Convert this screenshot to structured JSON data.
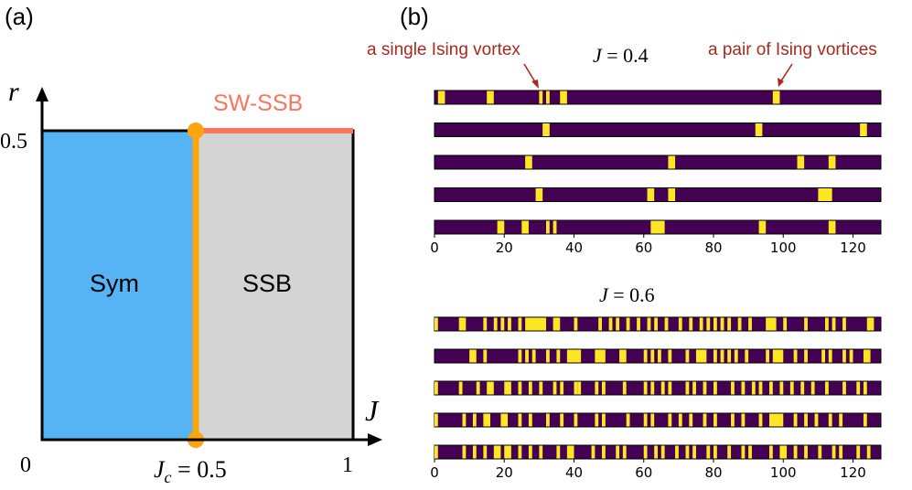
{
  "panel_a": {
    "label": "(a)",
    "axis_x_label": "J",
    "axis_y_label": "r",
    "origin_label": "0",
    "x_end_label": "1",
    "y_top_label": "0.5",
    "jc_label_main": "J",
    "jc_label_sub": "c",
    "jc_label_rest": " = 0.5",
    "region_sym": "Sym",
    "region_ssb": "SSB",
    "region_swssb": "SW-SSB",
    "colors": {
      "sym": "#56B4F5",
      "ssb": "#D4D4D4",
      "critical": "#FDA50F",
      "swssb": "#F87560"
    }
  },
  "panel_b": {
    "label": "(b)",
    "annotation_left": "a single Ising vortex",
    "annotation_right": "a pair of Ising vortices",
    "annotation_color": "#A72A1F",
    "purple": "#440154",
    "yellow": "#FDE725"
  },
  "chart_data": [
    {
      "type": "heatmap",
      "title": "J = 0.4",
      "title_var": "J",
      "title_rest": " = 0.4",
      "x_range": [
        0,
        128
      ],
      "x_ticks": [
        "0",
        "20",
        "40",
        "60",
        "80",
        "100",
        "120"
      ],
      "rows": [
        [
          [
            1,
            3
          ],
          [
            15,
            17
          ],
          [
            30,
            31
          ],
          [
            32,
            33
          ],
          [
            36,
            38
          ],
          [
            97,
            99
          ]
        ],
        [
          [
            31,
            33
          ],
          [
            92,
            94
          ],
          [
            122,
            124
          ]
        ],
        [
          [
            26,
            28
          ],
          [
            67,
            69
          ],
          [
            104,
            106
          ],
          [
            113,
            115
          ]
        ],
        [
          [
            29,
            31
          ],
          [
            61,
            63
          ],
          [
            67,
            69
          ],
          [
            110,
            114
          ]
        ],
        [
          [
            18,
            20
          ],
          [
            25,
            27
          ],
          [
            32,
            33
          ],
          [
            34,
            35
          ],
          [
            62,
            66
          ],
          [
            93,
            95
          ],
          [
            113,
            115
          ]
        ]
      ]
    },
    {
      "type": "heatmap",
      "title": "J = 0.6",
      "title_var": "J",
      "title_rest": " = 0.6",
      "x_range": [
        0,
        128
      ],
      "x_ticks": [
        "0",
        "20",
        "40",
        "60",
        "80",
        "100",
        "120"
      ],
      "rows": [
        [
          [
            0,
            1
          ],
          [
            7,
            9
          ],
          [
            14,
            15
          ],
          [
            17,
            18
          ],
          [
            19,
            20
          ],
          [
            21,
            22
          ],
          [
            24,
            25
          ],
          [
            26,
            32
          ],
          [
            34,
            36
          ],
          [
            40,
            41
          ],
          [
            47,
            48
          ],
          [
            50,
            51
          ],
          [
            52,
            53
          ],
          [
            55,
            56
          ],
          [
            58,
            59
          ],
          [
            61,
            62
          ],
          [
            63,
            64
          ],
          [
            66,
            67
          ],
          [
            70,
            71
          ],
          [
            73,
            74
          ],
          [
            76,
            77
          ],
          [
            78,
            79
          ],
          [
            80,
            81
          ],
          [
            82,
            83
          ],
          [
            84,
            85
          ],
          [
            87,
            88
          ],
          [
            90,
            91
          ],
          [
            95,
            98
          ],
          [
            100,
            101
          ],
          [
            106,
            107
          ],
          [
            112,
            113
          ],
          [
            114,
            115
          ],
          [
            117,
            118
          ],
          [
            124,
            126
          ]
        ],
        [
          [
            10,
            12
          ],
          [
            14,
            15
          ],
          [
            24,
            25
          ],
          [
            26,
            27
          ],
          [
            28,
            29
          ],
          [
            32,
            33
          ],
          [
            35,
            36
          ],
          [
            38,
            42
          ],
          [
            46,
            49
          ],
          [
            53,
            55
          ],
          [
            60,
            61
          ],
          [
            62,
            63
          ],
          [
            64,
            65
          ],
          [
            67,
            68
          ],
          [
            72,
            73
          ],
          [
            75,
            78
          ],
          [
            80,
            81
          ],
          [
            82,
            83
          ],
          [
            84,
            85
          ],
          [
            86,
            87
          ],
          [
            89,
            90
          ],
          [
            95,
            96
          ],
          [
            97,
            100
          ],
          [
            103,
            104
          ],
          [
            106,
            107
          ],
          [
            111,
            112
          ],
          [
            113,
            114
          ],
          [
            117,
            118
          ],
          [
            119,
            120
          ],
          [
            123,
            125
          ]
        ],
        [
          [
            0,
            1
          ],
          [
            7,
            8
          ],
          [
            12,
            13
          ],
          [
            15,
            17
          ],
          [
            20,
            22
          ],
          [
            24,
            25
          ],
          [
            27,
            28
          ],
          [
            30,
            31
          ],
          [
            34,
            35
          ],
          [
            36,
            37
          ],
          [
            40,
            41
          ],
          [
            41,
            42
          ],
          [
            46,
            47
          ],
          [
            48,
            49
          ],
          [
            54,
            55
          ],
          [
            60,
            61
          ],
          [
            62,
            63
          ],
          [
            65,
            66
          ],
          [
            67,
            68
          ],
          [
            72,
            73
          ],
          [
            74,
            75
          ],
          [
            77,
            78
          ],
          [
            80,
            81
          ],
          [
            85,
            86
          ],
          [
            88,
            89
          ],
          [
            91,
            92
          ],
          [
            93,
            94
          ],
          [
            96,
            97
          ],
          [
            99,
            100
          ],
          [
            102,
            103
          ],
          [
            105,
            106
          ],
          [
            108,
            109
          ],
          [
            112,
            113
          ],
          [
            117,
            118
          ],
          [
            121,
            122
          ],
          [
            123,
            124
          ]
        ],
        [
          [
            0,
            1
          ],
          [
            8,
            9
          ],
          [
            11,
            12
          ],
          [
            14,
            16
          ],
          [
            19,
            21
          ],
          [
            24,
            25
          ],
          [
            27,
            28
          ],
          [
            32,
            33
          ],
          [
            36,
            37
          ],
          [
            40,
            41
          ],
          [
            46,
            47
          ],
          [
            48,
            49
          ],
          [
            55,
            56
          ],
          [
            60,
            61
          ],
          [
            62,
            63
          ],
          [
            67,
            68
          ],
          [
            70,
            71
          ],
          [
            73,
            74
          ],
          [
            77,
            78
          ],
          [
            80,
            81
          ],
          [
            85,
            86
          ],
          [
            88,
            89
          ],
          [
            93,
            94
          ],
          [
            96,
            99
          ],
          [
            99,
            100
          ],
          [
            103,
            104
          ],
          [
            106,
            107
          ],
          [
            109,
            110
          ],
          [
            113,
            114
          ],
          [
            116,
            117
          ],
          [
            123,
            124
          ]
        ],
        [
          [
            0,
            1
          ],
          [
            8,
            9
          ],
          [
            11,
            12
          ],
          [
            14,
            15
          ],
          [
            17,
            19
          ],
          [
            20,
            22
          ],
          [
            24,
            25
          ],
          [
            27,
            28
          ],
          [
            30,
            31
          ],
          [
            35,
            36
          ],
          [
            38,
            40
          ],
          [
            45,
            46
          ],
          [
            48,
            49
          ],
          [
            52,
            53
          ],
          [
            54,
            55
          ],
          [
            60,
            61
          ],
          [
            63,
            64
          ],
          [
            65,
            66
          ],
          [
            69,
            70
          ],
          [
            72,
            73
          ],
          [
            74,
            75
          ],
          [
            78,
            79
          ],
          [
            80,
            81
          ],
          [
            84,
            85
          ],
          [
            88,
            89
          ],
          [
            90,
            91
          ],
          [
            96,
            97
          ],
          [
            99,
            101
          ],
          [
            103,
            104
          ],
          [
            106,
            107
          ],
          [
            110,
            111
          ],
          [
            114,
            115
          ],
          [
            116,
            117
          ],
          [
            121,
            122
          ],
          [
            124,
            125
          ]
        ]
      ]
    }
  ]
}
